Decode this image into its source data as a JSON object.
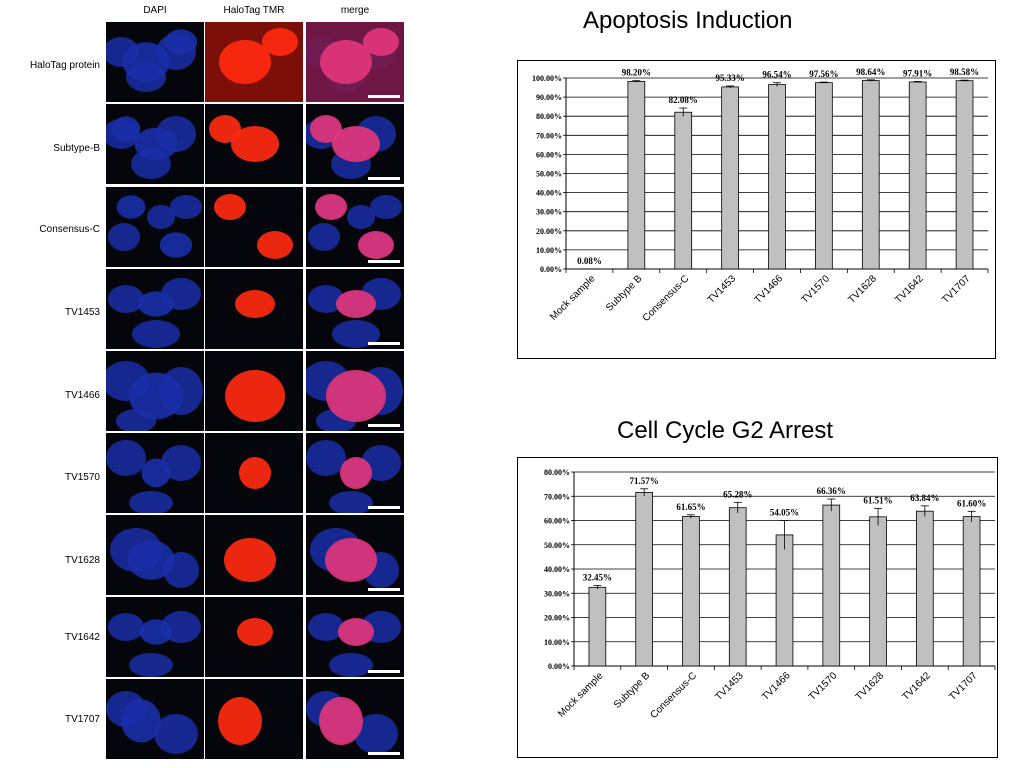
{
  "micrograph": {
    "columns": [
      "DAPI",
      "HaloTag TMR",
      "merge"
    ],
    "rows": [
      "HaloTag protein",
      "Subtype-B",
      "Consensus-C",
      "TV1453",
      "TV1466",
      "TV1570",
      "TV1628",
      "TV1642",
      "TV1707"
    ],
    "colors": {
      "dapi": "#1a2fa8",
      "tmr": "#ff2a10",
      "merge": "#e0357a",
      "background": "#05060c"
    }
  },
  "chart_data": [
    {
      "type": "bar",
      "title": "Apoptosis Induction",
      "categories": [
        "Mock sample",
        "Subtype B",
        "Consensus-C",
        "TV1453",
        "TV1466",
        "TV1570",
        "TV1628",
        "TV1642",
        "TV1707"
      ],
      "values": [
        0.08,
        98.2,
        82.08,
        95.33,
        96.54,
        97.56,
        98.64,
        97.91,
        98.58
      ],
      "value_labels": [
        "0.08%",
        "98.20%",
        "82.08%",
        "95.33%",
        "96.54%",
        "97.56%",
        "98.64%",
        "97.91%",
        "98.58%"
      ],
      "errors": [
        0,
        0.4,
        2.2,
        0.5,
        1.0,
        0.3,
        0.4,
        0.3,
        0.3
      ],
      "ylim": [
        0,
        100
      ],
      "yticks": [
        "0.00%",
        "10.00%",
        "20.00%",
        "30.00%",
        "40.00%",
        "50.00%",
        "60.00%",
        "70.00%",
        "80.00%",
        "90.00%",
        "100.00%"
      ],
      "grid": true,
      "bar_color": "#c0c0c0"
    },
    {
      "type": "bar",
      "title": "Cell Cycle G2 Arrest",
      "categories": [
        "Mock sample",
        "Subtype B",
        "Consensus-C",
        "TV1453",
        "TV1466",
        "TV1570",
        "TV1628",
        "TV1642",
        "TV1707"
      ],
      "values": [
        32.45,
        71.57,
        61.65,
        65.28,
        54.05,
        66.36,
        61.51,
        63.84,
        61.6
      ],
      "value_labels": [
        "32.45%",
        "71.57%",
        "61.65%",
        "65.28%",
        "54.05%",
        "66.36%",
        "61.51%",
        "63.84%",
        "61.60%"
      ],
      "errors": [
        0.7,
        1.5,
        0.7,
        2.2,
        6.0,
        2.5,
        3.5,
        2.2,
        2.2
      ],
      "ylim": [
        0,
        80
      ],
      "yticks": [
        "0.00%",
        "10.00%",
        "20.00%",
        "30.00%",
        "40.00%",
        "50.00%",
        "60.00%",
        "70.00%",
        "80.00%"
      ],
      "grid": true,
      "bar_color": "#c0c0c0"
    }
  ]
}
